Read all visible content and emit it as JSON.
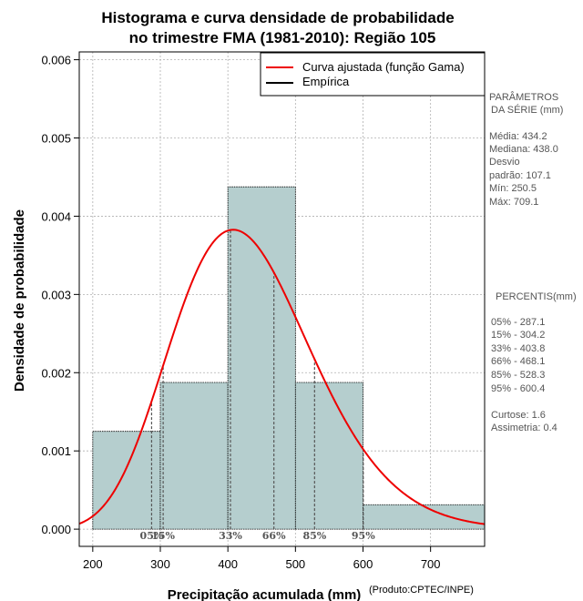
{
  "chart_data": {
    "type": "histogram",
    "title_line1": "Histograma e curva densidade de probabilidade",
    "title_line2": "no trimestre FMA (1981-2010): Região 105",
    "xlabel": "Precipitação acumulada (mm)",
    "ylabel": "Densidade de probabilidade",
    "credit": "(Produto:CPTEC/INPE)",
    "xlim": [
      180,
      780
    ],
    "ylim": [
      -0.00022,
      0.0061
    ],
    "x_ticks": [
      200,
      300,
      400,
      500,
      600,
      700
    ],
    "x_tick_labels": [
      "200",
      "300",
      "400",
      "500",
      "600",
      "700"
    ],
    "y_ticks": [
      0.0,
      0.001,
      0.002,
      0.003,
      0.004,
      0.005,
      0.006
    ],
    "y_tick_labels": [
      "0.000",
      "0.001",
      "0.002",
      "0.003",
      "0.004",
      "0.005",
      "0.006"
    ],
    "grid": true,
    "bins": [
      {
        "from": 200,
        "to": 300,
        "density": 0.00125
      },
      {
        "from": 300,
        "to": 400,
        "density": 0.001875
      },
      {
        "from": 400,
        "to": 500,
        "density": 0.004375
      },
      {
        "from": 500,
        "to": 600,
        "density": 0.001875
      },
      {
        "from": 600,
        "to": 800,
        "density": 0.0003125
      }
    ],
    "gamma_fit": {
      "shape": 16.47,
      "scale": 26.36
    },
    "percentile_markers": [
      {
        "label": "05%",
        "value": 287.1
      },
      {
        "label": "15%",
        "value": 304.2
      },
      {
        "label": "33%",
        "value": 403.8
      },
      {
        "label": "66%",
        "value": 468.1
      },
      {
        "label": "85%",
        "value": 528.3
      },
      {
        "label": "95%",
        "value": 600.4
      }
    ],
    "legend": {
      "position": "top-right",
      "entries": [
        {
          "label": "Curva ajustada (função Gama)",
          "color": "#ee0000"
        },
        {
          "label": "Empírica",
          "color": "#000000"
        }
      ]
    },
    "colors": {
      "bar_fill": "#b5cece",
      "curve": "#ee0000",
      "grid": "#b0b0b0"
    }
  },
  "side_panel": {
    "params_title": [
      "PARÂMETROS",
      "DA SÉRIE (mm)"
    ],
    "params": [
      "Média:  434.2",
      "Mediana:  438.0",
      "Desvio",
      "padrão:  107.1",
      "Mín:  250.5",
      "Máx:  709.1"
    ],
    "percentis_title": "PERCENTIS(mm)",
    "percentis": [
      "05% -   287.1",
      "15% -   304.2",
      "33% -   403.8",
      "66% -   468.1",
      "85% -   528.3",
      "95% -   600.4"
    ],
    "extra": [
      "Curtose:  1.6",
      "Assimetria:  0.4"
    ]
  }
}
